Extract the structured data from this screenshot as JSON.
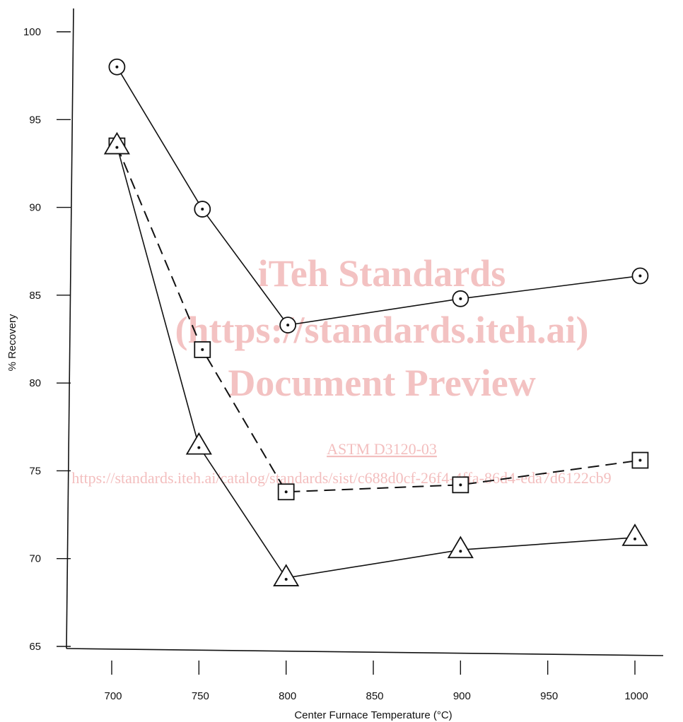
{
  "chart_data": {
    "type": "line",
    "title": "",
    "xlabel": "Center Furnace Temperature (°C)",
    "ylabel": "% Recovery",
    "xlim": [
      650,
      1030
    ],
    "ylim": [
      65,
      100
    ],
    "xticks": [
      700,
      750,
      800,
      850,
      900,
      950,
      1000
    ],
    "yticks": [
      65,
      70,
      75,
      80,
      85,
      90,
      95,
      100
    ],
    "grid": false,
    "legend": "none",
    "series": [
      {
        "marker": "circle",
        "linestyle": "solid",
        "x": [
          703,
          752,
          801,
          900,
          1003
        ],
        "y": [
          98.0,
          89.9,
          83.3,
          84.8,
          86.1
        ]
      },
      {
        "marker": "square",
        "linestyle": "dashed",
        "x": [
          703,
          752,
          800,
          900,
          1003
        ],
        "y": [
          93.5,
          81.9,
          73.8,
          74.2,
          75.6
        ]
      },
      {
        "marker": "triangle",
        "linestyle": "solid",
        "x": [
          703,
          750,
          800,
          900,
          1000
        ],
        "y": [
          93.5,
          76.4,
          68.9,
          70.5,
          71.2
        ]
      }
    ]
  },
  "watermark": {
    "line1": "iTeh Standards",
    "line2": "(https://standards.iteh.ai)",
    "line3": "Document Preview",
    "link": "ASTM D3120-03",
    "url": "https://standards.iteh.ai/catalog/standards/sist/c688d0cf-26f4-4ffa-86d4-eda7d6122cb9"
  },
  "colors": {
    "ink": "#111111",
    "watermark": "#f2b8b8"
  }
}
